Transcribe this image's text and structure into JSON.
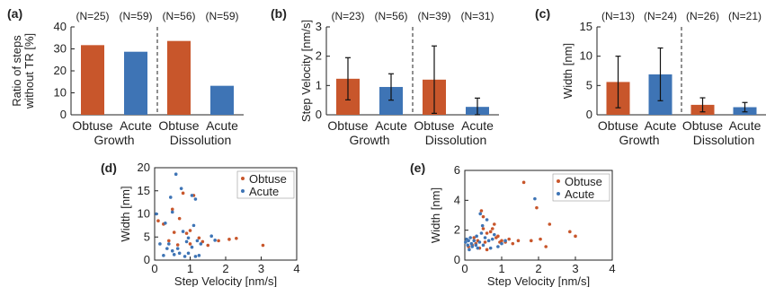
{
  "colors": {
    "obtuse": "#C8562B",
    "acute": "#3E74B5",
    "axis": "#222222"
  },
  "panels": [
    {
      "label": "(a)",
      "chart_data": {
        "type": "bar",
        "categories": [
          "Obtuse",
          "Acute",
          "Obtuse",
          "Acute"
        ],
        "groups": [
          "Growth",
          "Dissolution"
        ],
        "n_labels": [
          "(N=25)",
          "(N=59)",
          "(N=56)",
          "(N=59)"
        ],
        "values": [
          31.7,
          28.7,
          33.6,
          13.2
        ],
        "ylabel": [
          "Ratio of steps",
          "without TR [%]"
        ],
        "ylim": [
          0,
          40
        ],
        "yticks": [
          0,
          10,
          20,
          30,
          40
        ],
        "error_bars": false
      }
    },
    {
      "label": "(b)",
      "chart_data": {
        "type": "bar",
        "categories": [
          "Obtuse",
          "Acute",
          "Obtuse",
          "Acute"
        ],
        "groups": [
          "Growth",
          "Dissolution"
        ],
        "n_labels": [
          "(N=23)",
          "(N=56)",
          "(N=39)",
          "(N=31)"
        ],
        "values": [
          1.23,
          0.95,
          1.2,
          0.27
        ],
        "errors": [
          0.72,
          0.45,
          1.15,
          0.3
        ],
        "ylabel": [
          "Step Velocity [nm/s]"
        ],
        "ylim": [
          0,
          3
        ],
        "yticks": [
          0,
          1,
          2,
          3
        ],
        "error_bars": true
      }
    },
    {
      "label": "(c)",
      "chart_data": {
        "type": "bar",
        "categories": [
          "Obtuse",
          "Acute",
          "Obtuse",
          "Acute"
        ],
        "groups": [
          "Growth",
          "Dissolution"
        ],
        "n_labels": [
          "(N=13)",
          "(N=24)",
          "(N=26)",
          "(N=21)"
        ],
        "values": [
          5.6,
          6.9,
          1.7,
          1.3
        ],
        "errors": [
          4.4,
          4.5,
          1.2,
          0.8
        ],
        "ylabel": [
          "Width [nm]"
        ],
        "ylim": [
          0,
          15
        ],
        "yticks": [
          0,
          5,
          10,
          15
        ],
        "error_bars": true
      }
    },
    {
      "label": "(d)",
      "chart_data": {
        "type": "scatter",
        "xlabel": "Step Velocity [nm/s]",
        "ylabel": "Width [nm]",
        "xlim": [
          0,
          4
        ],
        "ylim": [
          0,
          20
        ],
        "xticks": [
          0,
          1,
          2,
          3,
          4
        ],
        "yticks": [
          0,
          5,
          10,
          15,
          20
        ],
        "legend": [
          "Obtuse",
          "Acute"
        ],
        "series": [
          {
            "name": "Obtuse",
            "points": [
              [
                0.1,
                8.5
              ],
              [
                0.25,
                7.8
              ],
              [
                0.4,
                4.2
              ],
              [
                0.5,
                11.0
              ],
              [
                0.55,
                6.0
              ],
              [
                0.7,
                9.0
              ],
              [
                0.8,
                14.5
              ],
              [
                0.9,
                5.8
              ],
              [
                1.0,
                6.4
              ],
              [
                1.0,
                3.5
              ],
              [
                1.1,
                14.0
              ],
              [
                1.25,
                4.8
              ],
              [
                1.35,
                4.0
              ],
              [
                1.5,
                3.2
              ],
              [
                1.8,
                4.2
              ],
              [
                2.1,
                4.5
              ],
              [
                2.3,
                4.7
              ],
              [
                3.05,
                3.2
              ],
              [
                0.65,
                3.3
              ]
            ]
          },
          {
            "name": "Acute",
            "points": [
              [
                0.05,
                10.0
              ],
              [
                0.15,
                3.5
              ],
              [
                0.3,
                8.0
              ],
              [
                0.35,
                2.5
              ],
              [
                0.4,
                3.5
              ],
              [
                0.45,
                13.6
              ],
              [
                0.5,
                10.4
              ],
              [
                0.5,
                2.0
              ],
              [
                0.6,
                18.6
              ],
              [
                0.65,
                2.5
              ],
              [
                0.7,
                1.5
              ],
              [
                0.75,
                15.5
              ],
              [
                0.8,
                6.2
              ],
              [
                0.9,
                4.0
              ],
              [
                0.95,
                4.8
              ],
              [
                0.95,
                1.5
              ],
              [
                1.05,
                14.0
              ],
              [
                1.05,
                2.8
              ],
              [
                1.1,
                7.5
              ],
              [
                1.15,
                13.2
              ],
              [
                1.15,
                0.8
              ],
              [
                1.2,
                4.2
              ],
              [
                1.25,
                1.0
              ],
              [
                1.3,
                3.5
              ],
              [
                1.6,
                5.2
              ],
              [
                1.7,
                4.3
              ],
              [
                0.55,
                1.2
              ],
              [
                0.25,
                1.0
              ],
              [
                0.85,
                0.8
              ]
            ]
          }
        ]
      }
    },
    {
      "label": "(e)",
      "chart_data": {
        "type": "scatter",
        "xlabel": "Step Velocity [nm/s]",
        "ylabel": "Width [nm]",
        "xlim": [
          0,
          4
        ],
        "ylim": [
          0,
          6
        ],
        "xticks": [
          0,
          1,
          2,
          3,
          4
        ],
        "yticks": [
          0,
          2,
          4,
          6
        ],
        "legend": [
          "Obtuse",
          "Acute"
        ],
        "series": [
          {
            "name": "Obtuse",
            "points": [
              [
                0.1,
                0.9
              ],
              [
                0.2,
                1.0
              ],
              [
                0.3,
                1.1
              ],
              [
                0.35,
                1.3
              ],
              [
                0.4,
                0.8
              ],
              [
                0.45,
                3.3
              ],
              [
                0.5,
                2.9
              ],
              [
                0.55,
                1.2
              ],
              [
                0.6,
                0.7
              ],
              [
                0.7,
                1.9
              ],
              [
                0.75,
                2.1
              ],
              [
                0.8,
                2.4
              ],
              [
                0.85,
                1.5
              ],
              [
                0.9,
                1.6
              ],
              [
                0.95,
                1.2
              ],
              [
                1.0,
                1.3
              ],
              [
                1.1,
                1.2
              ],
              [
                1.2,
                1.4
              ],
              [
                1.3,
                1.1
              ],
              [
                1.45,
                1.3
              ],
              [
                1.6,
                5.2
              ],
              [
                1.8,
                1.3
              ],
              [
                1.95,
                3.5
              ],
              [
                2.05,
                1.4
              ],
              [
                2.2,
                0.9
              ],
              [
                2.3,
                2.4
              ],
              [
                2.85,
                1.9
              ],
              [
                3.0,
                1.6
              ],
              [
                0.6,
                1.8
              ],
              [
                0.25,
                1.5
              ],
              [
                0.5,
                2.1
              ]
            ]
          },
          {
            "name": "Acute",
            "points": [
              [
                0.02,
                1.2
              ],
              [
                0.05,
                1.4
              ],
              [
                0.08,
                1.0
              ],
              [
                0.1,
                1.3
              ],
              [
                0.12,
                0.7
              ],
              [
                0.15,
                1.5
              ],
              [
                0.18,
                1.1
              ],
              [
                0.2,
                0.9
              ],
              [
                0.25,
                1.3
              ],
              [
                0.3,
                1.0
              ],
              [
                0.32,
                1.6
              ],
              [
                0.35,
                0.8
              ],
              [
                0.4,
                1.2
              ],
              [
                0.42,
                3.1
              ],
              [
                0.45,
                1.8
              ],
              [
                0.48,
                2.3
              ],
              [
                0.5,
                1.0
              ],
              [
                0.55,
                1.5
              ],
              [
                0.6,
                2.7
              ],
              [
                0.65,
                1.3
              ],
              [
                0.7,
                0.8
              ],
              [
                0.75,
                1.4
              ],
              [
                0.8,
                1.7
              ],
              [
                0.9,
                0.9
              ],
              [
                1.0,
                1.1
              ],
              [
                1.1,
                1.3
              ],
              [
                1.9,
                4.1
              ]
            ]
          }
        ]
      }
    }
  ]
}
